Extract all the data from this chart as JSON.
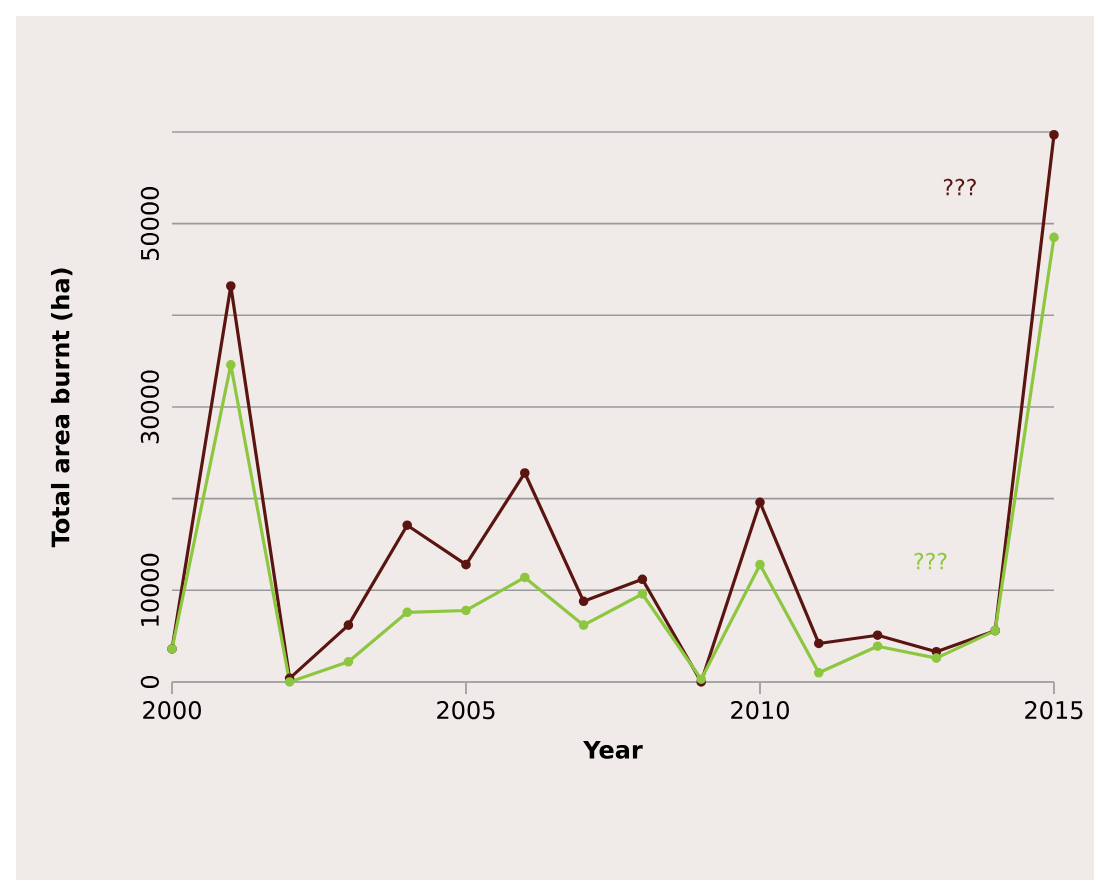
{
  "chart_data": {
    "type": "line",
    "xlabel": "Year",
    "ylabel": "Total area burnt (ha)",
    "x": [
      2000,
      2001,
      2002,
      2003,
      2004,
      2005,
      2006,
      2007,
      2008,
      2009,
      2010,
      2011,
      2012,
      2013,
      2014,
      2015
    ],
    "series": [
      {
        "name": "???",
        "color": "#5a1510",
        "values": [
          3600,
          43200,
          400,
          6200,
          17100,
          12800,
          22800,
          8800,
          11200,
          0,
          19600,
          4200,
          5100,
          3300,
          5600,
          59700
        ]
      },
      {
        "name": "???",
        "color": "#8dc63f",
        "values": [
          3600,
          34600,
          0,
          2200,
          7600,
          7800,
          11400,
          6200,
          9600,
          300,
          12800,
          1000,
          3900,
          2600,
          5600,
          48500
        ]
      }
    ],
    "xlim": [
      2000,
      2015
    ],
    "xticks": [
      2000,
      2005,
      2010,
      2015
    ],
    "ylim": [
      0,
      60000
    ],
    "yticks": [
      0,
      10000,
      {
        "value": 20000,
        "label": null
      },
      30000,
      {
        "value": 40000,
        "label": null
      },
      50000,
      {
        "value": 60000,
        "label": null
      }
    ],
    "grid": "y",
    "marker": "circle",
    "line_style": "solid"
  }
}
